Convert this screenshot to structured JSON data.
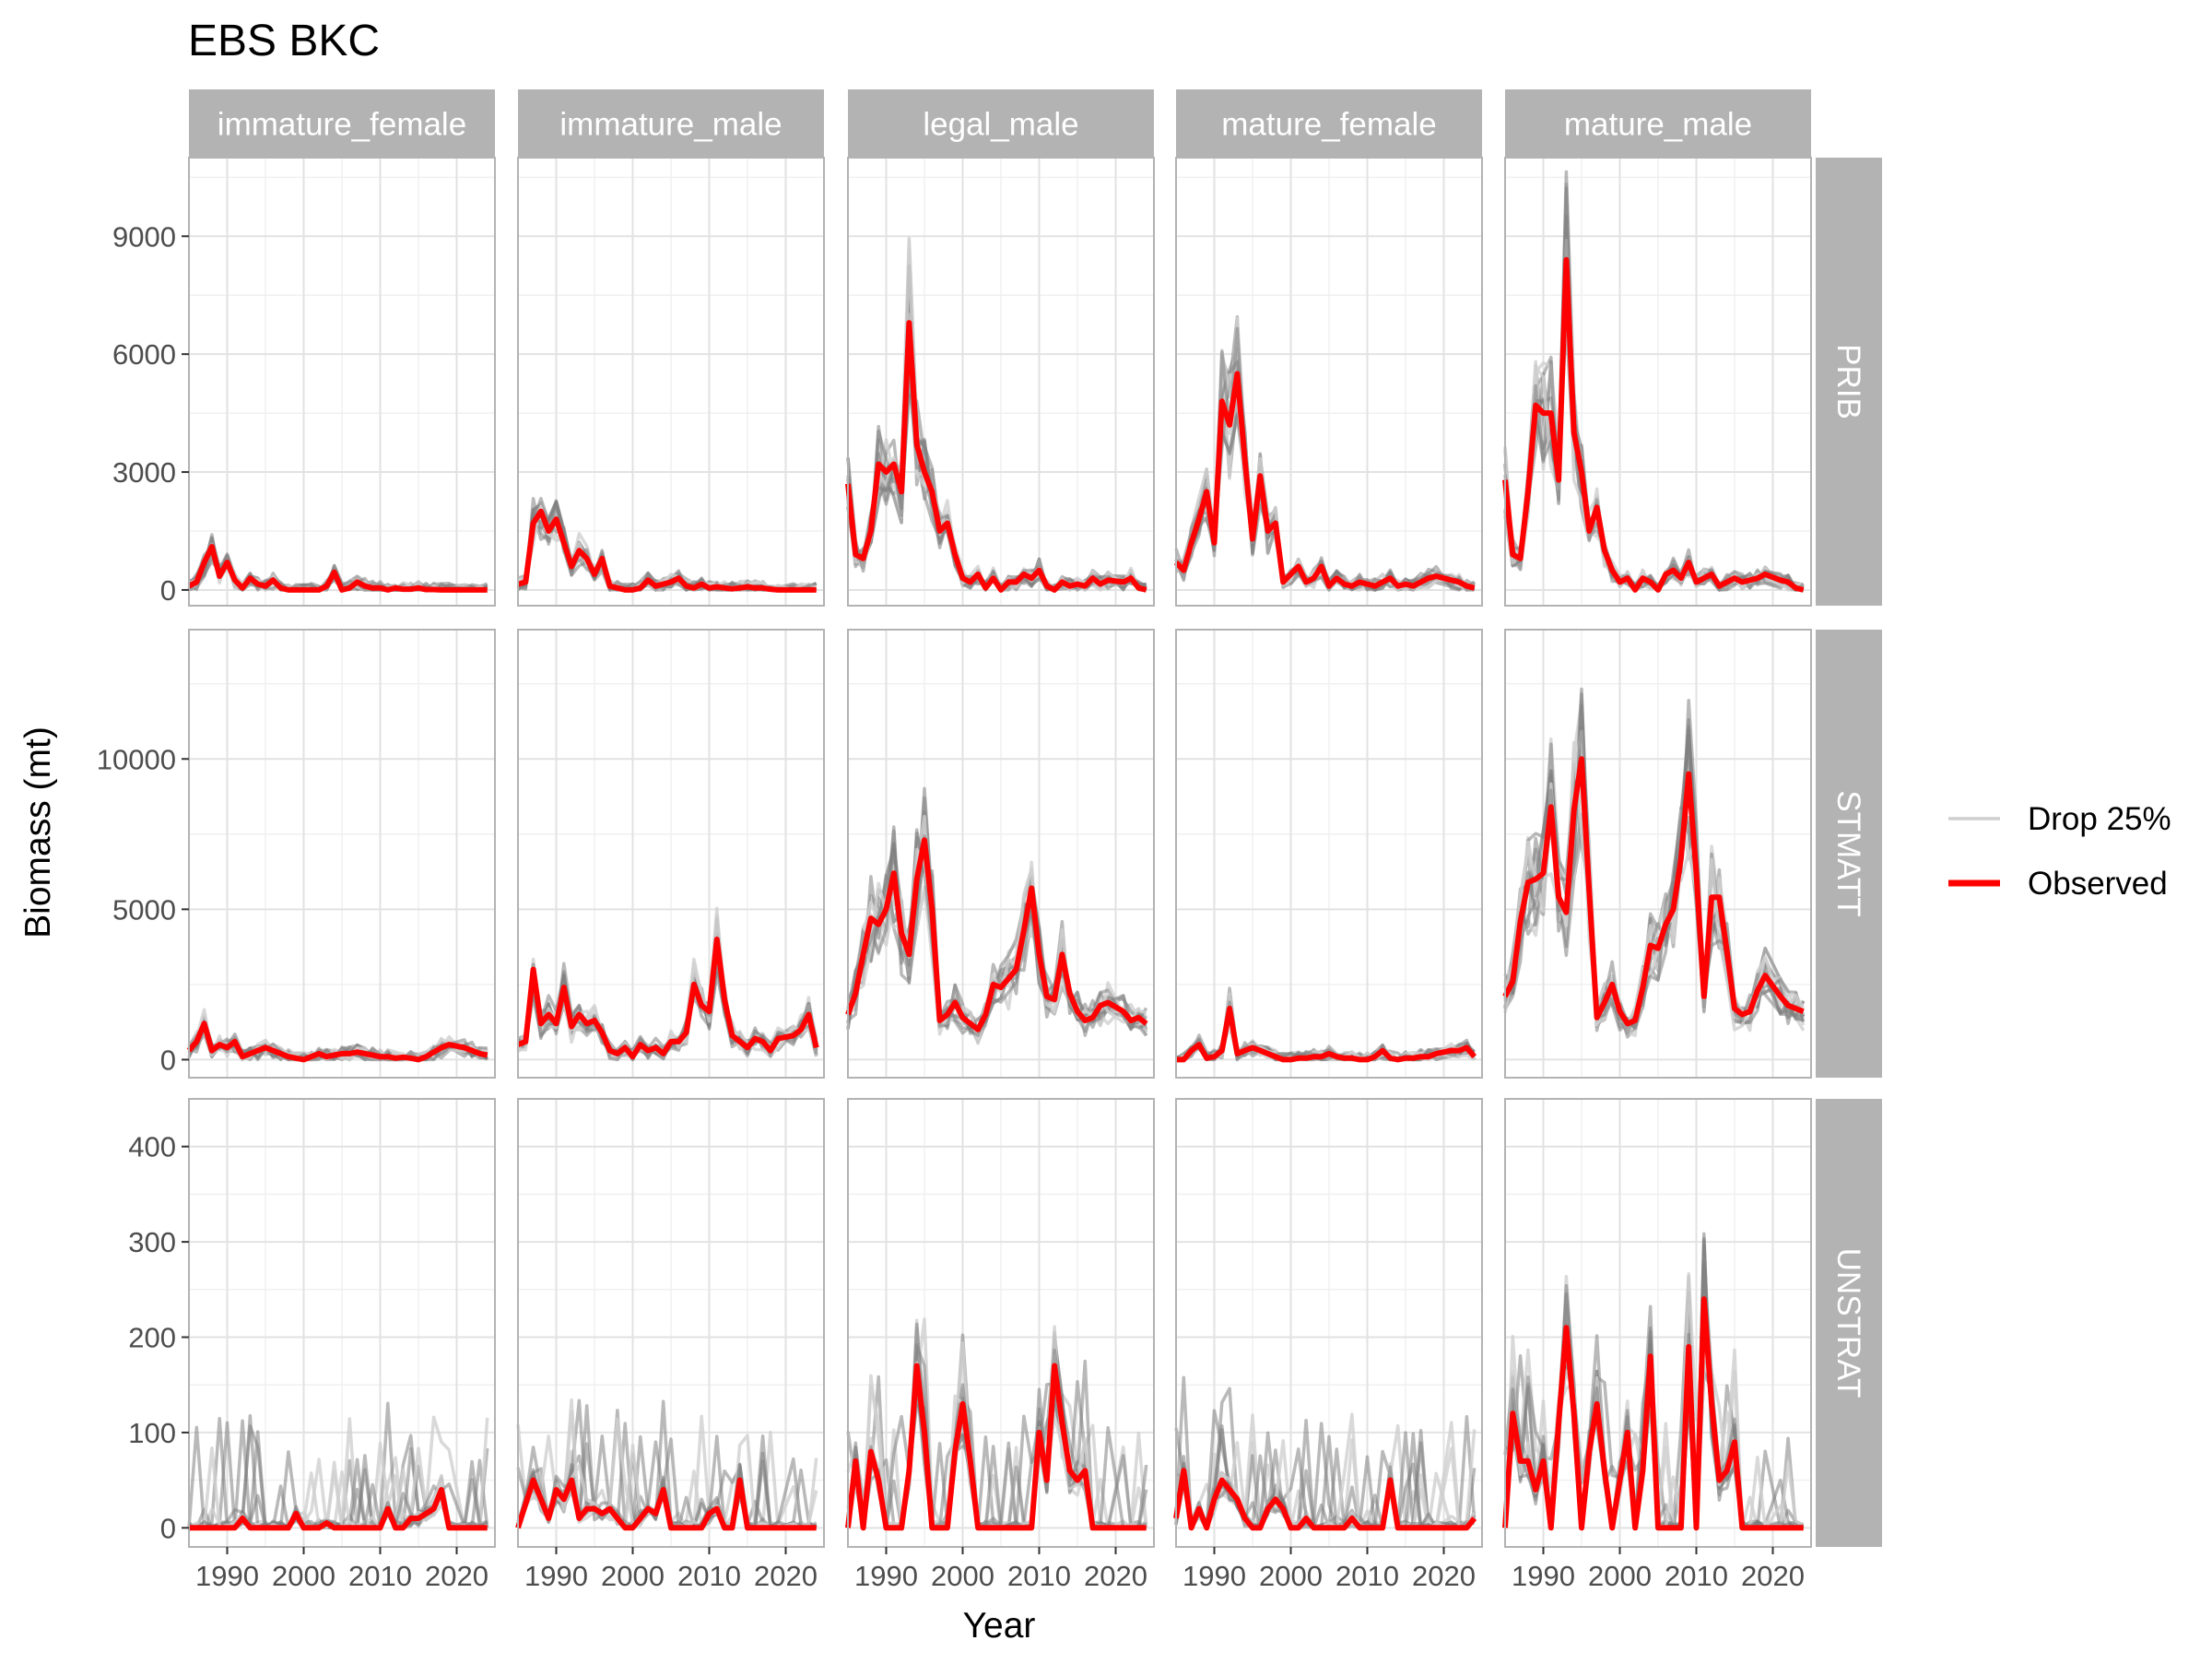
{
  "chart_data": {
    "type": "line",
    "title": "EBS BKC",
    "xlabel": "Year",
    "ylabel": "Biomass (mt)",
    "grid": true,
    "legend_position": "right",
    "x_ticks": [
      1990,
      2000,
      2010,
      2020
    ],
    "xlim": [
      1985,
      2025
    ],
    "years": [
      1985,
      1986,
      1987,
      1988,
      1989,
      1990,
      1991,
      1992,
      1993,
      1994,
      1995,
      1996,
      1997,
      1998,
      1999,
      2000,
      2001,
      2002,
      2003,
      2004,
      2005,
      2006,
      2007,
      2008,
      2009,
      2010,
      2011,
      2012,
      2013,
      2014,
      2015,
      2016,
      2017,
      2018,
      2019,
      2021,
      2022,
      2023,
      2024
    ],
    "columns": [
      "immature_female",
      "immature_male",
      "legal_male",
      "mature_female",
      "mature_male"
    ],
    "rows": [
      {
        "name": "PRIB",
        "ylim": [
          -400,
          11000
        ],
        "y_ticks": [
          0,
          3000,
          6000,
          9000
        ]
      },
      {
        "name": "STMATT",
        "ylim": [
          -600,
          14300
        ],
        "y_ticks": [
          0,
          5000,
          10000
        ]
      },
      {
        "name": "UNSTRAT",
        "ylim": [
          -20,
          450
        ],
        "y_ticks": [
          0,
          100,
          200,
          300,
          400
        ]
      }
    ],
    "legend": [
      {
        "label": "Drop 25%",
        "color": "#cfcfcf"
      },
      {
        "label": "Observed",
        "color": "#ff0000"
      }
    ],
    "colors": {
      "observed": "#ff0000",
      "drop_dark": "#7f7f7f",
      "drop_light": "#cfcfcf",
      "strip": "#b3b3b3"
    },
    "series": [
      {
        "name": "Observed",
        "row": "PRIB",
        "column": "immature_female",
        "values": [
          100,
          200,
          700,
          1100,
          350,
          700,
          250,
          50,
          300,
          150,
          100,
          250,
          50,
          0,
          0,
          0,
          0,
          0,
          100,
          450,
          0,
          50,
          200,
          100,
          50,
          50,
          0,
          50,
          20,
          20,
          50,
          10,
          10,
          0,
          0,
          0,
          0,
          0,
          0
        ]
      },
      {
        "name": "Observed",
        "row": "PRIB",
        "column": "immature_male",
        "values": [
          150,
          200,
          1700,
          2000,
          1500,
          1800,
          1200,
          600,
          1000,
          800,
          400,
          800,
          100,
          50,
          0,
          0,
          50,
          250,
          100,
          150,
          200,
          300,
          100,
          50,
          150,
          50,
          80,
          50,
          30,
          50,
          80,
          50,
          50,
          20,
          0,
          0,
          0,
          0,
          0
        ]
      },
      {
        "name": "Observed",
        "row": "PRIB",
        "column": "legal_male",
        "values": [
          2700,
          900,
          800,
          1500,
          3200,
          3000,
          3200,
          2500,
          6800,
          3700,
          3000,
          2500,
          1500,
          1700,
          900,
          300,
          200,
          400,
          50,
          300,
          0,
          200,
          200,
          400,
          300,
          500,
          100,
          0,
          200,
          100,
          150,
          100,
          300,
          150,
          250,
          200,
          300,
          50,
          0
        ]
      },
      {
        "name": "Observed",
        "row": "PRIB",
        "column": "mature_female",
        "values": [
          700,
          500,
          1200,
          1800,
          2500,
          1200,
          4800,
          4200,
          5500,
          3300,
          1300,
          2900,
          1500,
          1700,
          200,
          400,
          600,
          200,
          300,
          600,
          100,
          300,
          150,
          100,
          200,
          150,
          100,
          200,
          300,
          100,
          150,
          100,
          200,
          300,
          350,
          250,
          200,
          100,
          50
        ]
      },
      {
        "name": "Observed",
        "row": "PRIB",
        "column": "mature_male",
        "values": [
          2800,
          900,
          800,
          2500,
          4700,
          4500,
          4500,
          2800,
          8400,
          4000,
          3000,
          1500,
          2100,
          1000,
          500,
          200,
          300,
          0,
          300,
          200,
          0,
          400,
          500,
          300,
          700,
          200,
          300,
          400,
          100,
          200,
          300,
          200,
          250,
          300,
          400,
          250,
          200,
          50,
          0
        ]
      },
      {
        "name": "Observed",
        "row": "STMATT",
        "column": "immature_female",
        "values": [
          300,
          600,
          1200,
          300,
          500,
          400,
          600,
          100,
          200,
          300,
          400,
          300,
          200,
          100,
          50,
          0,
          100,
          200,
          100,
          150,
          200,
          200,
          250,
          200,
          150,
          100,
          100,
          50,
          80,
          50,
          0,
          100,
          250,
          400,
          500,
          400,
          300,
          200,
          150
        ]
      },
      {
        "name": "Observed",
        "row": "STMATT",
        "column": "immature_male",
        "values": [
          500,
          600,
          3000,
          1200,
          1500,
          1200,
          2400,
          1100,
          1500,
          1200,
          1300,
          900,
          300,
          200,
          400,
          100,
          500,
          300,
          400,
          200,
          600,
          600,
          900,
          2500,
          1800,
          1600,
          4000,
          2000,
          800,
          600,
          400,
          700,
          600,
          300,
          700,
          800,
          1000,
          1500,
          400
        ]
      },
      {
        "name": "Observed",
        "row": "STMATT",
        "column": "legal_male",
        "values": [
          1500,
          2200,
          3500,
          4700,
          4500,
          5000,
          6200,
          4200,
          3500,
          6000,
          7300,
          5000,
          1300,
          1500,
          1900,
          1400,
          1200,
          1000,
          1500,
          2500,
          2400,
          2700,
          3000,
          4300,
          5700,
          3500,
          2100,
          2000,
          3500,
          2200,
          1600,
          1300,
          1400,
          1800,
          1900,
          1600,
          1300,
          1400,
          1200
        ]
      },
      {
        "name": "Observed",
        "row": "STMATT",
        "column": "mature_female",
        "values": [
          0,
          0,
          300,
          500,
          50,
          100,
          300,
          1700,
          200,
          300,
          400,
          300,
          200,
          100,
          0,
          0,
          50,
          50,
          100,
          100,
          200,
          100,
          50,
          50,
          0,
          0,
          100,
          300,
          50,
          0,
          50,
          50,
          100,
          100,
          200,
          300,
          300,
          400,
          100
        ]
      },
      {
        "name": "Observed",
        "row": "STMATT",
        "column": "mature_male",
        "values": [
          2100,
          2600,
          4600,
          5900,
          6000,
          6200,
          8400,
          5400,
          4900,
          8300,
          10000,
          5600,
          1400,
          1900,
          2500,
          1600,
          1200,
          1300,
          2400,
          3800,
          3700,
          4500,
          5000,
          6700,
          9500,
          6200,
          2100,
          5400,
          5400,
          3600,
          1700,
          1500,
          1600,
          2300,
          2800,
          2100,
          1800,
          1700,
          1600
        ]
      },
      {
        "name": "Observed",
        "row": "UNSTRAT",
        "column": "immature_female",
        "values": [
          0,
          0,
          0,
          0,
          0,
          0,
          0,
          10,
          0,
          0,
          0,
          0,
          0,
          0,
          15,
          0,
          0,
          0,
          5,
          0,
          0,
          0,
          0,
          0,
          0,
          0,
          20,
          0,
          0,
          10,
          10,
          15,
          20,
          40,
          0,
          0,
          0,
          0,
          0
        ]
      },
      {
        "name": "Observed",
        "row": "UNSTRAT",
        "column": "immature_male",
        "values": [
          0,
          25,
          50,
          30,
          10,
          40,
          30,
          50,
          10,
          20,
          20,
          15,
          20,
          10,
          0,
          0,
          10,
          20,
          15,
          40,
          0,
          0,
          0,
          0,
          0,
          15,
          20,
          0,
          0,
          50,
          0,
          0,
          0,
          0,
          0,
          0,
          0,
          0,
          0
        ]
      },
      {
        "name": "Observed",
        "row": "UNSTRAT",
        "column": "legal_male",
        "values": [
          0,
          70,
          0,
          80,
          50,
          0,
          0,
          0,
          60,
          170,
          100,
          0,
          0,
          0,
          80,
          130,
          70,
          0,
          0,
          0,
          0,
          0,
          0,
          0,
          0,
          100,
          50,
          170,
          110,
          60,
          50,
          60,
          0,
          0,
          0,
          0,
          0,
          0,
          0
        ]
      },
      {
        "name": "Observed",
        "row": "UNSTRAT",
        "column": "mature_female",
        "values": [
          10,
          60,
          0,
          20,
          0,
          30,
          50,
          40,
          30,
          10,
          0,
          0,
          20,
          30,
          20,
          0,
          0,
          10,
          0,
          0,
          0,
          0,
          0,
          10,
          0,
          0,
          0,
          0,
          50,
          0,
          0,
          0,
          0,
          0,
          0,
          0,
          0,
          0,
          10
        ]
      },
      {
        "name": "Observed",
        "row": "UNSTRAT",
        "column": "mature_male",
        "values": [
          0,
          120,
          70,
          70,
          40,
          70,
          0,
          110,
          210,
          120,
          0,
          80,
          130,
          60,
          0,
          50,
          100,
          0,
          60,
          180,
          0,
          0,
          0,
          0,
          190,
          0,
          240,
          130,
          50,
          60,
          90,
          0,
          0,
          0,
          0,
          0,
          0,
          0,
          0
        ]
      }
    ]
  }
}
